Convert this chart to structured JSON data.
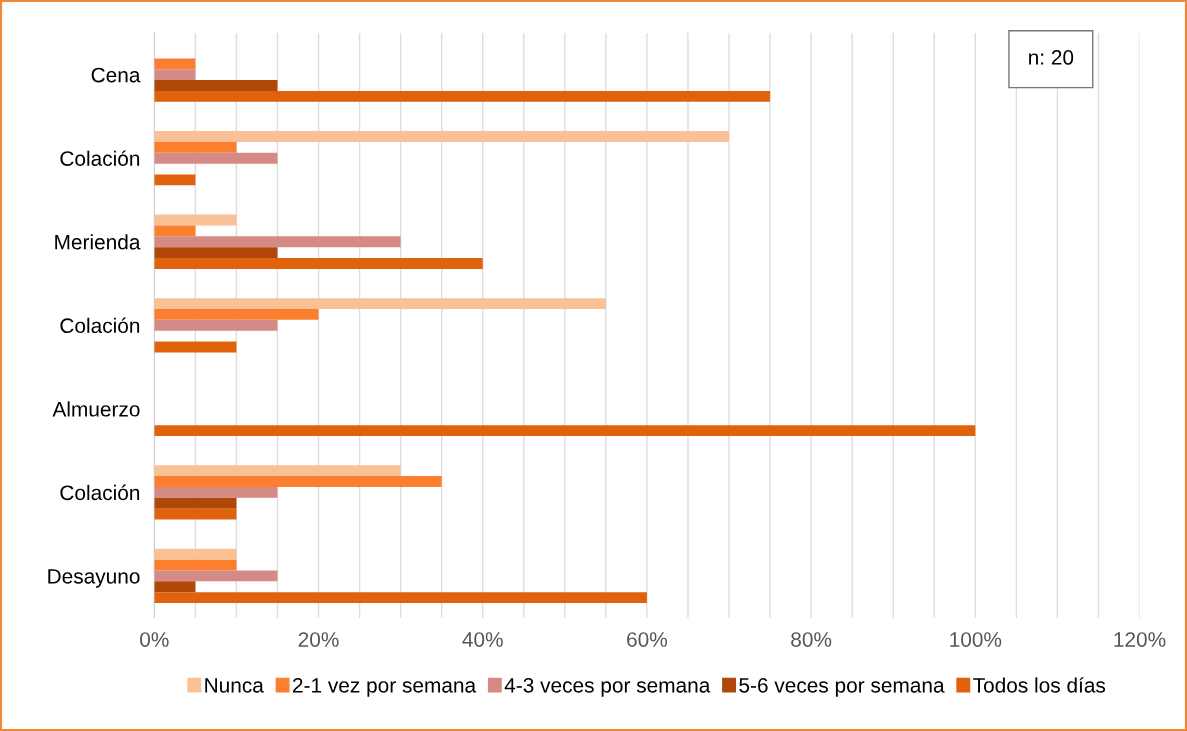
{
  "chart_data": {
    "type": "bar",
    "orientation": "horizontal",
    "categories": [
      "Cena",
      "Colación",
      "Merienda",
      "Colación",
      "Almuerzo",
      "Colación",
      "Desayuno"
    ],
    "series": [
      {
        "name": "Nunca",
        "color": "#f9c195",
        "values": [
          0,
          70,
          10,
          55,
          0,
          30,
          10
        ]
      },
      {
        "name": "2-1 vez por semana",
        "color": "#fb7f2e",
        "values": [
          5,
          10,
          5,
          20,
          0,
          35,
          10
        ]
      },
      {
        "name": "4-3 veces por semana",
        "color": "#d58a85",
        "values": [
          5,
          15,
          30,
          15,
          0,
          15,
          15
        ]
      },
      {
        "name": "5-6 veces por semana",
        "color": "#b1480a",
        "values": [
          15,
          0,
          15,
          0,
          0,
          10,
          5
        ]
      },
      {
        "name": "Todos los días",
        "color": "#e0620c",
        "values": [
          75,
          5,
          40,
          10,
          100,
          10,
          60
        ]
      }
    ],
    "xlim": [
      0,
      120
    ],
    "xticks": [
      {
        "value": 0,
        "label": "0%"
      },
      {
        "value": 5,
        "label": null
      },
      {
        "value": 10,
        "label": null
      },
      {
        "value": 15,
        "label": null
      },
      {
        "value": 20,
        "label": "20%"
      },
      {
        "value": 25,
        "label": null
      },
      {
        "value": 30,
        "label": null
      },
      {
        "value": 35,
        "label": null
      },
      {
        "value": 40,
        "label": "40%"
      },
      {
        "value": 45,
        "label": null
      },
      {
        "value": 50,
        "label": null
      },
      {
        "value": 55,
        "label": null
      },
      {
        "value": 60,
        "label": "60%"
      },
      {
        "value": 65,
        "label": null
      },
      {
        "value": 70,
        "label": null
      },
      {
        "value": 75,
        "label": null
      },
      {
        "value": 80,
        "label": "80%"
      },
      {
        "value": 85,
        "label": null
      },
      {
        "value": 90,
        "label": null
      },
      {
        "value": 95,
        "label": null
      },
      {
        "value": 100,
        "label": "100%"
      },
      {
        "value": 105,
        "label": null
      },
      {
        "value": 110,
        "label": null
      },
      {
        "value": 115,
        "label": null
      },
      {
        "value": 120,
        "label": "120%"
      }
    ],
    "grid": "x",
    "legend": "bottom",
    "annotations": [
      "n: 20"
    ]
  }
}
